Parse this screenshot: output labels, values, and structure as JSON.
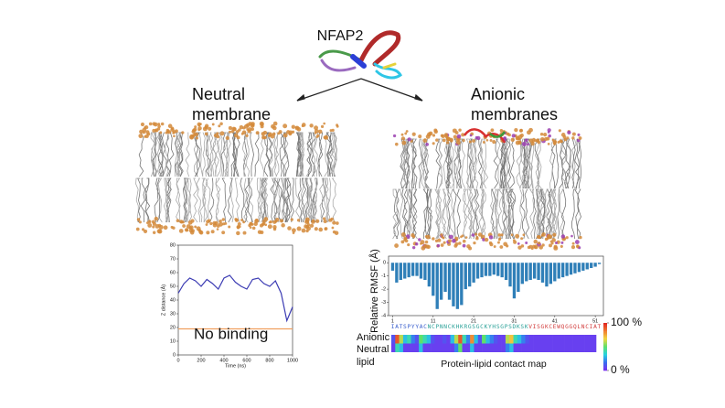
{
  "figure": {
    "protein": "NFAP2",
    "neutral_title": [
      "Neutral",
      "membrane"
    ],
    "anionic_title": [
      "Anionic",
      "membranes"
    ]
  },
  "chart_data": [
    {
      "type": "line",
      "x": [
        0,
        50,
        100,
        150,
        200,
        250,
        300,
        350,
        400,
        450,
        500,
        550,
        600,
        650,
        700,
        750,
        800,
        850,
        900,
        950,
        1000
      ],
      "series": [
        {
          "color": "#3b3bb3",
          "values": [
            45,
            52,
            56,
            54,
            50,
            55,
            52,
            48,
            56,
            58,
            53,
            50,
            48,
            55,
            56,
            52,
            50,
            54,
            45,
            25,
            35
          ]
        },
        {
          "color": "#f0a060",
          "values": [
            19,
            19,
            19,
            19,
            19,
            19,
            19,
            19,
            19,
            19,
            19,
            19,
            19,
            19,
            19,
            19,
            19,
            19,
            19,
            19,
            19
          ]
        }
      ],
      "xlim": [
        0,
        1000
      ],
      "xticks": [
        0,
        200,
        400,
        600,
        800,
        1000
      ],
      "ylim": [
        0,
        80
      ],
      "yticks": [
        0,
        10,
        20,
        30,
        40,
        50,
        60,
        70,
        80
      ],
      "xlabel": "Time (ns)",
      "ylabel": "Z distance (Å)",
      "annotation": "No binding"
    },
    {
      "type": "bar",
      "color": "#2f7fb8",
      "x": [
        1,
        2,
        3,
        4,
        5,
        6,
        7,
        8,
        9,
        10,
        11,
        12,
        13,
        14,
        15,
        16,
        17,
        18,
        19,
        20,
        21,
        22,
        23,
        24,
        25,
        26,
        27,
        28,
        29,
        30,
        31,
        32,
        33,
        34,
        35,
        36,
        37,
        38,
        39,
        40,
        41,
        42,
        43,
        44,
        45,
        46,
        47,
        48,
        49,
        50,
        51,
        52
      ],
      "values": [
        -0.6,
        -1.5,
        -1.3,
        -1.2,
        -1.1,
        -1.0,
        -1.0,
        -1.2,
        -1.3,
        -1.8,
        -2.5,
        -3.5,
        -2.8,
        -2.2,
        -2.8,
        -3.3,
        -3.5,
        -3.2,
        -2.0,
        -1.8,
        -1.5,
        -1.2,
        -1.1,
        -1.0,
        -1.0,
        -0.9,
        -1.0,
        -1.1,
        -1.3,
        -1.8,
        -2.7,
        -2.2,
        -1.6,
        -1.4,
        -1.3,
        -1.2,
        -1.3,
        -1.5,
        -1.8,
        -1.6,
        -1.4,
        -1.2,
        -1.1,
        -1.0,
        -0.9,
        -0.8,
        -0.7,
        -0.6,
        -0.5,
        -0.4,
        -0.3,
        -0.1
      ],
      "xlim": [
        0,
        53
      ],
      "xticks": [
        1,
        11,
        21,
        31,
        41,
        51
      ],
      "ylim": [
        -4,
        0.5
      ],
      "yticks": [
        0,
        -1,
        -2,
        -3,
        -4
      ],
      "ylabel": "Relative RMSF (Å)",
      "sequence": [
        "IATSPYYAC",
        "NCPNNCKHKRGSGCKYHSGPSDKSK",
        "VISGKCEWQGGQLNCIAT"
      ],
      "sequence_colors": [
        "#3a5fcd",
        "#2aa198",
        "#d23c3c"
      ]
    },
    {
      "type": "heatmap",
      "row_labels": [
        "Anionic",
        "Neutral",
        "lipid"
      ],
      "rows": [
        [
          10,
          90,
          60,
          30,
          40,
          20,
          10,
          50,
          40,
          30,
          10,
          5,
          5,
          10,
          5,
          30,
          60,
          90,
          40,
          20,
          80,
          30,
          10,
          50,
          30,
          20,
          10,
          5,
          5,
          60,
          70,
          40,
          30,
          20,
          10,
          5,
          5,
          5,
          5,
          5,
          5,
          5,
          5,
          5,
          5,
          5,
          5,
          5,
          5,
          5,
          5,
          5
        ],
        [
          5,
          40,
          30,
          5,
          5,
          5,
          5,
          30,
          5,
          5,
          5,
          5,
          5,
          5,
          5,
          5,
          20,
          50,
          5,
          5,
          30,
          5,
          5,
          5,
          5,
          5,
          5,
          5,
          5,
          20,
          30,
          5,
          5,
          5,
          5,
          5,
          5,
          5,
          5,
          5,
          5,
          5,
          5,
          5,
          5,
          5,
          5,
          5,
          5,
          5,
          5,
          5
        ]
      ],
      "zlim": [
        0,
        100
      ],
      "colorscale": [
        "#7b2cf0",
        "#3a6df0",
        "#27d3e0",
        "#5ee06a",
        "#f2d640",
        "#f07a30",
        "#e02020"
      ],
      "colorbar_ticks": [
        {
          "value": 100,
          "label": "100 %"
        },
        {
          "value": 0,
          "label": "0 %"
        }
      ],
      "caption": "Protein-lipid contact map"
    }
  ]
}
